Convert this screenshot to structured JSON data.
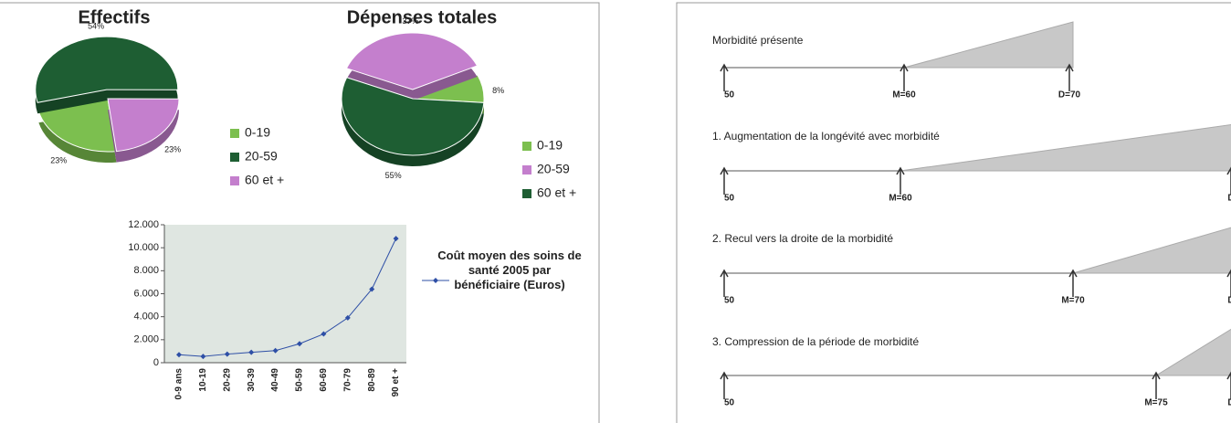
{
  "chart_data": [
    {
      "type": "pie",
      "title": "Effectifs",
      "categories": [
        "0-19",
        "20-59",
        "60 et +"
      ],
      "values": [
        23,
        54,
        23
      ],
      "value_labels": [
        "23%",
        "54%",
        "23%"
      ],
      "colors": [
        "#7cbf4f",
        "#1e5e33",
        "#c47fcd"
      ],
      "legend": "right"
    },
    {
      "type": "pie",
      "title": "Dépenses totales",
      "categories": [
        "0-19",
        "20-59",
        "60 et +"
      ],
      "values": [
        8,
        37,
        55
      ],
      "value_labels": [
        "8%",
        "37%",
        "55%"
      ],
      "colors": [
        "#7cbf4f",
        "#c47fcd",
        "#1e5e33"
      ],
      "legend": "right"
    },
    {
      "type": "line",
      "categories": [
        "0-9 ans",
        "10-19",
        "20-29",
        "30-39",
        "40-49",
        "50-59",
        "60-69",
        "70-79",
        "80-89",
        "90 et +"
      ],
      "series": [
        {
          "name": "Coût moyen des soins de santé 2005 par bénéficiaire (Euros)",
          "color": "#2e4fa6",
          "values": [
            700,
            550,
            750,
            900,
            1050,
            1650,
            2500,
            3900,
            6400,
            10800
          ]
        }
      ],
      "ylim": [
        0,
        12000
      ],
      "yticks": [
        0,
        {
          "value": 2000,
          "label": "2.000"
        },
        {
          "value": 4000,
          "label": "4.000"
        },
        {
          "value": 6000,
          "label": "6.000"
        },
        {
          "value": 8000,
          "label": "8.000"
        },
        {
          "value": 10000,
          "label": "10.000"
        },
        {
          "value": 12000,
          "label": "12.000"
        }
      ],
      "legend": "right"
    }
  ],
  "diagram": {
    "rows": [
      {
        "title": "Morbidité présente",
        "start": "50",
        "m": "M=60",
        "d": "D=70"
      },
      {
        "title": "1. Augmentation de la longévité avec morbidité",
        "start": "50",
        "m": "M=60",
        "d": "D"
      },
      {
        "title": "2. Recul vers la droite de la morbidité",
        "start": "50",
        "m": "M=70",
        "d": "D"
      },
      {
        "title": "3. Compression de la période de morbidité",
        "start": "50",
        "m": "M=75",
        "d": "D"
      }
    ]
  }
}
